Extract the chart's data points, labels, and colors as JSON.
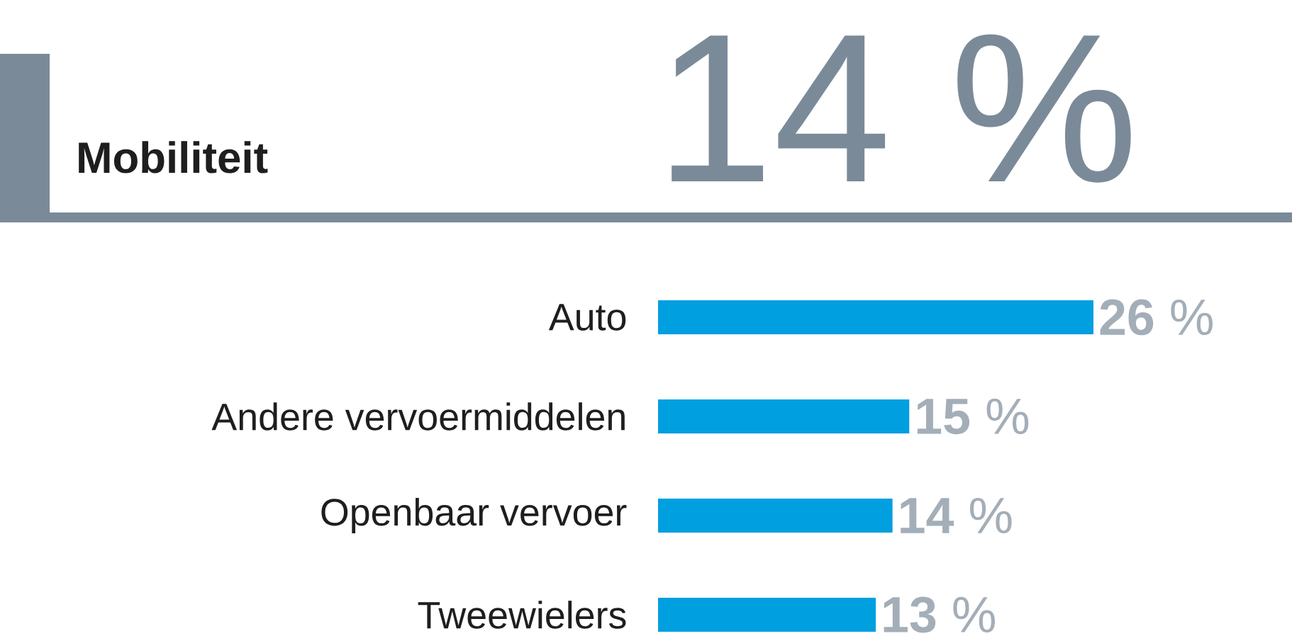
{
  "chart_data": {
    "type": "bar",
    "orientation": "horizontal",
    "title": "Mobiliteit",
    "subtitle": "14 %",
    "categories": [
      "Auto",
      "Andere vervoermiddelen",
      "Openbaar vervoer",
      "Tweewielers"
    ],
    "values": [
      26,
      15,
      14,
      13
    ],
    "color": "#009fe0",
    "value_labels": [
      "**26** %",
      "**15** %",
      "**14** %",
      "**13** %"
    ]
  }
}
